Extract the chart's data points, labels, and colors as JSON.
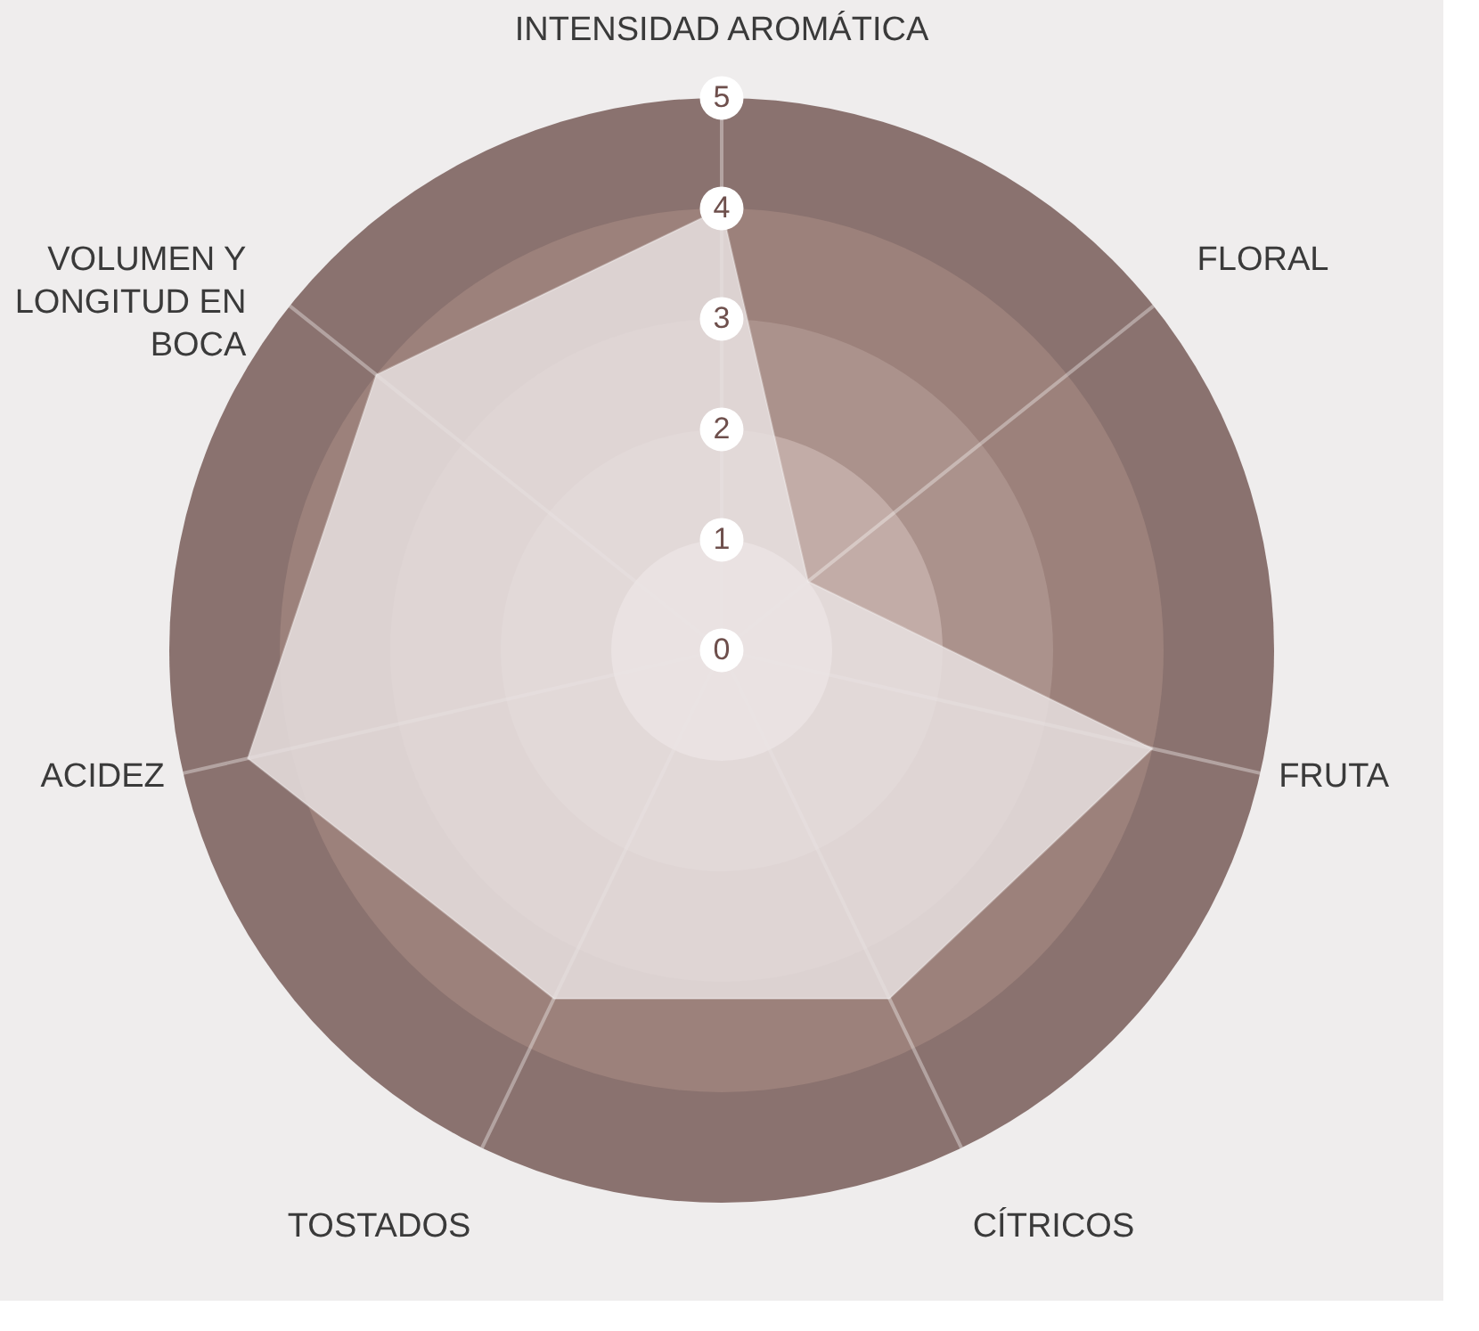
{
  "chart_data": {
    "type": "radar",
    "categories": [
      "INTENSIDAD AROMÁTICA",
      "FLORAL",
      "FRUTA",
      "CÍTRICOS",
      "TOSTADOS",
      "ACIDEZ",
      "VOLUMEN Y\nLONGITUD EN\nBOCA"
    ],
    "series": [
      {
        "color": "#e8e1e0",
        "values": [
          4,
          1,
          4,
          3.5,
          3.5,
          4.4,
          4
        ]
      }
    ],
    "ylim": [
      0,
      5
    ],
    "yticks": [
      0,
      1,
      2,
      3,
      4,
      5
    ]
  }
}
